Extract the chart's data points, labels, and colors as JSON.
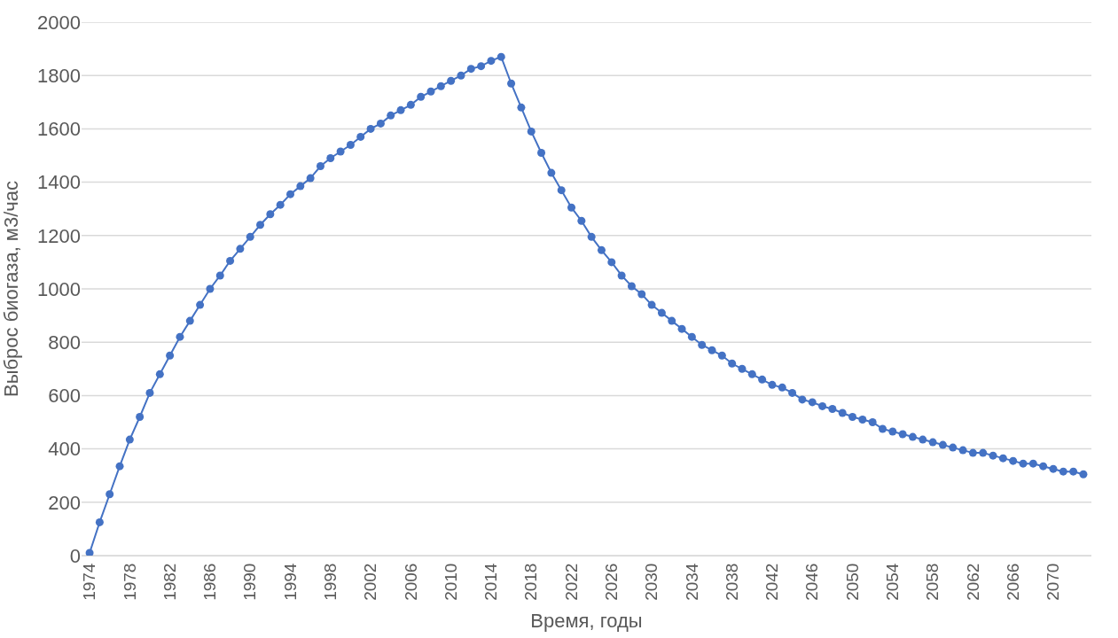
{
  "chart_data": {
    "type": "line",
    "xlabel": "Время, годы",
    "ylabel": "Выброс биогаза, м3/час",
    "categories": [
      "1974",
      null,
      null,
      null,
      "1978",
      null,
      null,
      null,
      "1982",
      null,
      null,
      null,
      "1986",
      null,
      null,
      null,
      "1990",
      null,
      null,
      null,
      "1994",
      null,
      null,
      null,
      "1998",
      null,
      null,
      null,
      "2002",
      null,
      null,
      null,
      "2006",
      null,
      null,
      null,
      "2010",
      null,
      null,
      null,
      "2014",
      null,
      null,
      null,
      "2018",
      null,
      null,
      null,
      "2022",
      null,
      null,
      null,
      "2026",
      null,
      null,
      null,
      "2030",
      null,
      null,
      null,
      "2034",
      null,
      null,
      null,
      "2038",
      null,
      null,
      null,
      "2042",
      null,
      null,
      null,
      "2046",
      null,
      null,
      null,
      "2050",
      null,
      null,
      null,
      "2054",
      null,
      null,
      null,
      "2058",
      null,
      null,
      null,
      "2062",
      null,
      null,
      null,
      "2066",
      null,
      null,
      null,
      "2070",
      null,
      null,
      null
    ],
    "series": [
      {
        "color": "#4472c4",
        "values": [
          10,
          125,
          230,
          335,
          435,
          520,
          610,
          680,
          750,
          820,
          880,
          940,
          1000,
          1050,
          1105,
          1150,
          1195,
          1240,
          1280,
          1315,
          1355,
          1385,
          1415,
          1460,
          1490,
          1515,
          1540,
          1570,
          1600,
          1620,
          1650,
          1670,
          1690,
          1720,
          1740,
          1760,
          1780,
          1800,
          1825,
          1835,
          1855,
          1870,
          1770,
          1680,
          1590,
          1510,
          1435,
          1370,
          1305,
          1255,
          1195,
          1145,
          1100,
          1050,
          1010,
          980,
          940,
          910,
          880,
          850,
          820,
          790,
          770,
          750,
          720,
          700,
          680,
          660,
          640,
          630,
          610,
          585,
          575,
          560,
          550,
          535,
          520,
          510,
          500,
          475,
          465,
          455,
          445,
          435,
          425,
          415,
          405,
          395,
          385,
          385,
          375,
          365,
          355,
          345,
          345,
          335,
          325,
          315,
          315,
          305
        ]
      }
    ],
    "ylim": [
      0,
      2000
    ],
    "yticks": [
      0,
      200,
      400,
      600,
      800,
      1000,
      1200,
      1400,
      1600,
      1800,
      2000
    ],
    "grid": "y",
    "marker": "circle",
    "line_style": "solid"
  }
}
